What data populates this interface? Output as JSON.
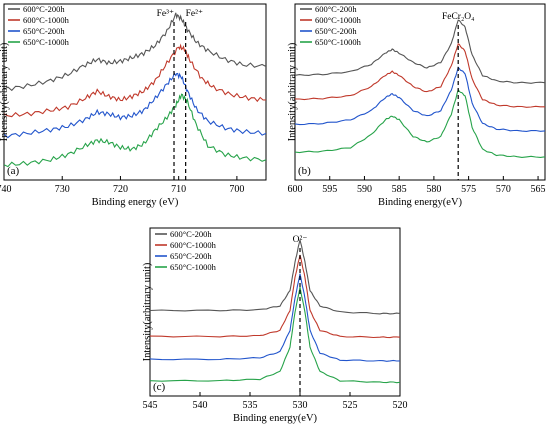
{
  "chart_data": [
    {
      "panel": "(a)",
      "type": "line",
      "xlabel": "Binding energy (eV)",
      "ylabel": "Intensity(arbitrary unit)",
      "xlim": [
        740,
        695
      ],
      "x_reversed": true,
      "x_ticks": [
        "740",
        "730",
        "720",
        "710",
        "700"
      ],
      "x_tick_values": [
        740,
        730,
        720,
        710,
        700
      ],
      "legend": [
        "600°C-200h",
        "600°C-1000h",
        "650°C-200h",
        "650°C-1000h"
      ],
      "legend_position": "top-left",
      "annotations": [
        {
          "text": "Fe³⁺",
          "x": 710.8
        },
        {
          "text": "Fe²⁺",
          "x": 708.8
        }
      ],
      "series": [
        {
          "name": "600°C-200h",
          "color": "#555555",
          "points": [
            [
              740,
              0.58
            ],
            [
              736,
              0.62
            ],
            [
              732,
              0.68
            ],
            [
              729,
              0.75
            ],
            [
              726,
              0.86
            ],
            [
              724,
              0.92
            ],
            [
              722,
              0.88
            ],
            [
              720,
              0.9
            ],
            [
              718,
              0.94
            ],
            [
              716,
              0.99
            ],
            [
              714,
              1.08
            ],
            [
              712,
              1.24
            ],
            [
              710.5,
              1.43
            ],
            [
              709.5,
              1.38
            ],
            [
              708.5,
              1.26
            ],
            [
              707,
              1.12
            ],
            [
              705,
              1.02
            ],
            [
              702,
              0.92
            ],
            [
              699,
              0.86
            ],
            [
              695,
              0.84
            ]
          ]
        },
        {
          "name": "600°C-1000h",
          "color": "#c0392b",
          "points": [
            [
              740,
              0.28
            ],
            [
              736,
              0.3
            ],
            [
              732,
              0.34
            ],
            [
              729,
              0.38
            ],
            [
              726,
              0.48
            ],
            [
              724,
              0.56
            ],
            [
              722,
              0.5
            ],
            [
              720,
              0.46
            ],
            [
              718,
              0.5
            ],
            [
              716,
              0.56
            ],
            [
              714,
              0.68
            ],
            [
              712,
              0.88
            ],
            [
              710,
              1.06
            ],
            [
              709,
              1.04
            ],
            [
              708,
              0.9
            ],
            [
              706,
              0.7
            ],
            [
              704,
              0.6
            ],
            [
              701,
              0.52
            ],
            [
              698,
              0.48
            ],
            [
              695,
              0.46
            ]
          ]
        },
        {
          "name": "650°C-200h",
          "color": "#2255cc",
          "points": [
            [
              740,
              0.05
            ],
            [
              736,
              0.08
            ],
            [
              732,
              0.12
            ],
            [
              729,
              0.16
            ],
            [
              726,
              0.24
            ],
            [
              724,
              0.32
            ],
            [
              722,
              0.3
            ],
            [
              720,
              0.26
            ],
            [
              718,
              0.28
            ],
            [
              716,
              0.34
            ],
            [
              714,
              0.48
            ],
            [
              712,
              0.64
            ],
            [
              710.5,
              0.76
            ],
            [
              709.5,
              0.72
            ],
            [
              708.5,
              0.56
            ],
            [
              707,
              0.36
            ],
            [
              705,
              0.22
            ],
            [
              702,
              0.14
            ],
            [
              699,
              0.1
            ],
            [
              695,
              0.08
            ]
          ]
        },
        {
          "name": "650°C-1000h",
          "color": "#27a34a",
          "points": [
            [
              740,
              -0.28
            ],
            [
              736,
              -0.26
            ],
            [
              732,
              -0.22
            ],
            [
              729,
              -0.16
            ],
            [
              726,
              -0.06
            ],
            [
              724,
              0.0
            ],
            [
              722,
              -0.02
            ],
            [
              720,
              -0.08
            ],
            [
              718,
              -0.1
            ],
            [
              716,
              -0.04
            ],
            [
              714,
              0.12
            ],
            [
              712,
              0.26
            ],
            [
              710.5,
              0.4
            ],
            [
              709.5,
              0.52
            ],
            [
              708.5,
              0.44
            ],
            [
              707,
              0.18
            ],
            [
              705,
              -0.06
            ],
            [
              702,
              -0.16
            ],
            [
              699,
              -0.2
            ],
            [
              695,
              -0.22
            ]
          ]
        }
      ]
    },
    {
      "panel": "(b)",
      "type": "line",
      "xlabel": "Binding energy(eV)",
      "ylabel": "Intensity(arbitrary unit)",
      "xlim": [
        600,
        564
      ],
      "x_reversed": true,
      "x_ticks": [
        "600",
        "595",
        "590",
        "585",
        "580",
        "575",
        "570",
        "565"
      ],
      "x_tick_values": [
        600,
        595,
        590,
        585,
        580,
        575,
        570,
        565
      ],
      "legend": [
        "600°C-200h",
        "600°C-1000h",
        "650°C-200h",
        "650°C-1000h"
      ],
      "legend_position": "top-left",
      "annotations": [
        {
          "text": "FeCr₂O₄",
          "x": 576.5
        }
      ],
      "series": [
        {
          "name": "600°C-200h",
          "color": "#555555",
          "points": [
            [
              600,
              0.78
            ],
            [
              596,
              0.79
            ],
            [
              592,
              0.82
            ],
            [
              589,
              0.9
            ],
            [
              587,
              1.02
            ],
            [
              586,
              1.06
            ],
            [
              585,
              1.02
            ],
            [
              583,
              0.92
            ],
            [
              581,
              0.86
            ],
            [
              579,
              0.92
            ],
            [
              577.5,
              1.12
            ],
            [
              576.5,
              1.38
            ],
            [
              575.5,
              1.3
            ],
            [
              574.5,
              1.0
            ],
            [
              573,
              0.78
            ],
            [
              571,
              0.72
            ],
            [
              568,
              0.7
            ],
            [
              564,
              0.7
            ]
          ]
        },
        {
          "name": "600°C-1000h",
          "color": "#c0392b",
          "points": [
            [
              600,
              0.52
            ],
            [
              596,
              0.53
            ],
            [
              592,
              0.56
            ],
            [
              589,
              0.66
            ],
            [
              587,
              0.78
            ],
            [
              586,
              0.82
            ],
            [
              585,
              0.78
            ],
            [
              583,
              0.66
            ],
            [
              581,
              0.6
            ],
            [
              579,
              0.66
            ],
            [
              577.5,
              0.88
            ],
            [
              576.5,
              1.12
            ],
            [
              575.5,
              1.04
            ],
            [
              574.5,
              0.74
            ],
            [
              573,
              0.52
            ],
            [
              571,
              0.46
            ],
            [
              568,
              0.44
            ],
            [
              564,
              0.44
            ]
          ]
        },
        {
          "name": "650°C-200h",
          "color": "#2255cc",
          "points": [
            [
              600,
              0.25
            ],
            [
              596,
              0.26
            ],
            [
              592,
              0.3
            ],
            [
              589,
              0.4
            ],
            [
              587,
              0.54
            ],
            [
              586,
              0.58
            ],
            [
              585,
              0.54
            ],
            [
              583,
              0.4
            ],
            [
              581,
              0.34
            ],
            [
              579,
              0.4
            ],
            [
              577.5,
              0.62
            ],
            [
              576.5,
              0.86
            ],
            [
              575.5,
              0.8
            ],
            [
              574.5,
              0.48
            ],
            [
              573,
              0.26
            ],
            [
              571,
              0.2
            ],
            [
              568,
              0.18
            ],
            [
              564,
              0.18
            ]
          ]
        },
        {
          "name": "650°C-1000h",
          "color": "#27a34a",
          "points": [
            [
              600,
              -0.05
            ],
            [
              596,
              -0.04
            ],
            [
              592,
              0.0
            ],
            [
              589,
              0.14
            ],
            [
              587,
              0.3
            ],
            [
              586,
              0.34
            ],
            [
              585,
              0.3
            ],
            [
              583,
              0.12
            ],
            [
              581,
              0.06
            ],
            [
              579,
              0.12
            ],
            [
              577.5,
              0.36
            ],
            [
              576.5,
              0.62
            ],
            [
              575.5,
              0.56
            ],
            [
              574.5,
              0.22
            ],
            [
              573,
              -0.02
            ],
            [
              571,
              -0.08
            ],
            [
              568,
              -0.1
            ],
            [
              564,
              -0.1
            ]
          ]
        }
      ]
    },
    {
      "panel": "(c)",
      "type": "line",
      "xlabel": "Binding energy(eV)",
      "ylabel": "Intensity(arbitrary unit)",
      "xlim": [
        545,
        520
      ],
      "x_reversed": true,
      "x_ticks": [
        "545",
        "540",
        "535",
        "530",
        "525",
        "520"
      ],
      "x_tick_values": [
        545,
        540,
        535,
        530,
        525,
        520
      ],
      "legend": [
        "600°C-200h",
        "600°C-1000h",
        "650°C-200h",
        "650°C-1000h"
      ],
      "legend_position": "top-left",
      "annotations": [
        {
          "text": "O²⁻",
          "x": 530
        }
      ],
      "series": [
        {
          "name": "600°C-200h",
          "color": "#555555",
          "points": [
            [
              545,
              0.92
            ],
            [
              538,
              0.92
            ],
            [
              534,
              0.93
            ],
            [
              532,
              0.98
            ],
            [
              531,
              1.18
            ],
            [
              530.5,
              1.55
            ],
            [
              530,
              1.85
            ],
            [
              529.5,
              1.55
            ],
            [
              529,
              1.18
            ],
            [
              528,
              0.98
            ],
            [
              526,
              0.9
            ],
            [
              522,
              0.88
            ],
            [
              520,
              0.88
            ]
          ]
        },
        {
          "name": "600°C-1000h",
          "color": "#c0392b",
          "points": [
            [
              545,
              0.58
            ],
            [
              538,
              0.58
            ],
            [
              534,
              0.59
            ],
            [
              532,
              0.66
            ],
            [
              531,
              0.92
            ],
            [
              530.5,
              1.35
            ],
            [
              530,
              1.65
            ],
            [
              529.5,
              1.35
            ],
            [
              529,
              0.92
            ],
            [
              528,
              0.66
            ],
            [
              526,
              0.58
            ],
            [
              522,
              0.57
            ],
            [
              520,
              0.57
            ]
          ]
        },
        {
          "name": "650°C-200h",
          "color": "#2255cc",
          "points": [
            [
              545,
              0.28
            ],
            [
              538,
              0.28
            ],
            [
              534,
              0.3
            ],
            [
              532,
              0.38
            ],
            [
              531,
              0.66
            ],
            [
              530.5,
              1.08
            ],
            [
              530,
              1.4
            ],
            [
              529.5,
              1.08
            ],
            [
              529,
              0.66
            ],
            [
              528,
              0.36
            ],
            [
              526,
              0.27
            ],
            [
              522,
              0.26
            ],
            [
              520,
              0.26
            ]
          ]
        },
        {
          "name": "650°C-1000h",
          "color": "#27a34a",
          "points": [
            [
              545,
              0.0
            ],
            [
              538,
              0.0
            ],
            [
              534,
              0.02
            ],
            [
              532,
              0.12
            ],
            [
              531,
              0.44
            ],
            [
              530.5,
              0.9
            ],
            [
              530,
              1.22
            ],
            [
              529.5,
              0.9
            ],
            [
              529,
              0.44
            ],
            [
              528,
              0.12
            ],
            [
              526,
              0.0
            ],
            [
              522,
              -0.02
            ],
            [
              520,
              -0.02
            ]
          ]
        }
      ]
    }
  ]
}
